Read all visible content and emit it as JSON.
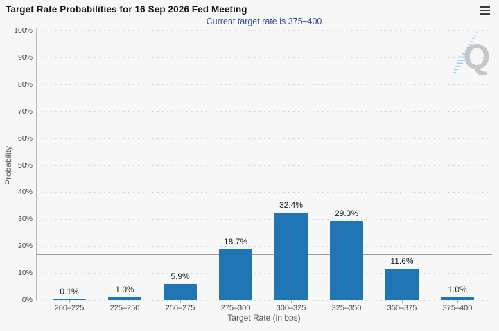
{
  "header": {
    "title": "Target Rate Probabilities for 16 Sep 2026 Fed Meeting",
    "menu_icon": "hamburger-menu-icon"
  },
  "watermark_icon": "quikstrike-q-logo-watermark",
  "colors": {
    "background": "#f7f7f7",
    "bar": "#2076b4",
    "subtitle": "#2e4d90",
    "gridline": "#cfcfcf",
    "axis_line": "#b8b8b8",
    "reference_line": "#9e9e9e",
    "watermark_q": "#c7c7c7",
    "watermark_dashes": "#8ccbe9"
  },
  "chart_data": {
    "type": "bar",
    "title": "Target Rate Probabilities for 16 Sep 2026 Fed Meeting",
    "subtitle": "Current target rate is 375–400",
    "categories": [
      "200–225",
      "225–250",
      "250–275",
      "275–300",
      "300–325",
      "325–350",
      "350–375",
      "375–400"
    ],
    "values": [
      0.1,
      1.0,
      5.9,
      18.7,
      32.4,
      29.3,
      11.6,
      1.0
    ],
    "value_labels": [
      "0.1%",
      "1.0%",
      "5.9%",
      "18.7%",
      "32.4%",
      "29.3%",
      "11.6%",
      "1.0%"
    ],
    "xlabel": "Target Rate (in bps)",
    "ylabel": "Probability",
    "ylim": [
      0,
      100
    ],
    "yticks": [
      0,
      10,
      20,
      30,
      40,
      50,
      60,
      70,
      80,
      90,
      100
    ],
    "ytick_labels": [
      "0%",
      "10%",
      "20%",
      "30%",
      "40%",
      "50%",
      "60%",
      "70%",
      "80%",
      "90%",
      "100%"
    ],
    "reference_line_value": 17,
    "grid": "horizontal-dotted",
    "legend": "none",
    "bar_color": "#2076b4"
  }
}
